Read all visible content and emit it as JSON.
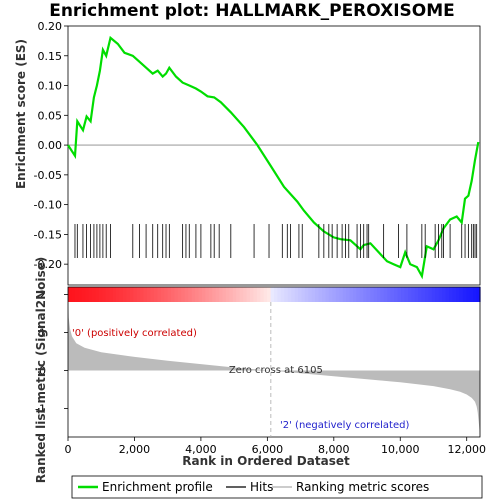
{
  "chart_data": {
    "type": "line",
    "title": "Enrichment plot: HALLMARK_PEROXISOME",
    "top_panel": {
      "ylabel": "Enrichment score (ES)",
      "ylim": [
        -0.235,
        0.2
      ],
      "yticks": [
        0.2,
        0.15,
        0.1,
        0.05,
        0.0,
        -0.05,
        -0.1,
        -0.15,
        -0.2
      ],
      "ytick_labels": [
        "0.20",
        "0.15",
        "0.10",
        "0.05",
        "0.00",
        "-0.05",
        "-0.10",
        "-0.15",
        "-0.20"
      ],
      "series": [
        {
          "name": "Enrichment profile",
          "color": "#00dd00",
          "x": [
            0,
            210,
            280,
            450,
            560,
            680,
            780,
            870,
            960,
            1050,
            1150,
            1280,
            1500,
            1700,
            1950,
            2150,
            2350,
            2550,
            2700,
            2850,
            2950,
            3050,
            3250,
            3450,
            3650,
            3850,
            4000,
            4200,
            4400,
            4600,
            4900,
            5300,
            5700,
            6100,
            6500,
            6900,
            7100,
            7400,
            7700,
            8000,
            8200,
            8500,
            8700,
            8800,
            8900,
            9100,
            9350,
            9600,
            9800,
            10000,
            10150,
            10300,
            10500,
            10650,
            10800,
            11000,
            11150,
            11300,
            11500,
            11700,
            11850,
            11950,
            12050,
            12150,
            12250,
            12350
          ],
          "y": [
            0.0,
            -0.018,
            0.04,
            0.025,
            0.048,
            0.04,
            0.08,
            0.1,
            0.125,
            0.16,
            0.15,
            0.18,
            0.17,
            0.155,
            0.15,
            0.14,
            0.13,
            0.12,
            0.125,
            0.115,
            0.12,
            0.13,
            0.115,
            0.105,
            0.1,
            0.095,
            0.09,
            0.082,
            0.08,
            0.072,
            0.055,
            0.03,
            0.0,
            -0.035,
            -0.07,
            -0.095,
            -0.11,
            -0.13,
            -0.145,
            -0.155,
            -0.158,
            -0.16,
            -0.17,
            -0.175,
            -0.168,
            -0.165,
            -0.18,
            -0.195,
            -0.2,
            -0.205,
            -0.18,
            -0.2,
            -0.205,
            -0.22,
            -0.17,
            -0.175,
            -0.16,
            -0.14,
            -0.125,
            -0.12,
            -0.13,
            -0.09,
            -0.085,
            -0.06,
            -0.025,
            0.005
          ]
        }
      ]
    },
    "hits": [
      210,
      280,
      450,
      560,
      680,
      780,
      870,
      960,
      1050,
      1150,
      1280,
      1950,
      2150,
      2350,
      2550,
      2700,
      2850,
      2950,
      3050,
      3450,
      3550,
      3650,
      3850,
      4000,
      4300,
      4400,
      4550,
      4900,
      5600,
      6050,
      6450,
      6600,
      6700,
      6950,
      7050,
      7550,
      7700,
      7850,
      7950,
      8100,
      8250,
      8350,
      8450,
      8700,
      8800,
      8900,
      9000,
      9050,
      9500,
      9950,
      10200,
      10650,
      10750,
      11050,
      11150,
      11250,
      11300,
      11500,
      11850,
      11950,
      12050,
      12150,
      12200,
      12250,
      12300
    ],
    "bottom_panel": {
      "ylabel": "Ranked list metric (Signal2Noise)",
      "xlabel": "Rank in Ordered Dataset",
      "xlim": [
        0,
        12400
      ],
      "ylim": [
        -1.75,
        2.2
      ],
      "yticks": [
        2,
        1,
        0,
        -1
      ],
      "xticks": [
        0,
        2000,
        4000,
        6000,
        8000,
        10000,
        12000
      ],
      "xtick_labels": [
        "0",
        "2,000",
        "4,000",
        "6,000",
        "8,000",
        "10,000",
        "12,000"
      ],
      "metric_profile": {
        "rank": [
          0,
          20,
          60,
          120,
          250,
          500,
          1000,
          2000,
          3000,
          4000,
          5000,
          6105,
          7000,
          8000,
          9000,
          10000,
          11000,
          11500,
          11800,
          12000,
          12150,
          12250,
          12300,
          12330,
          12360,
          12400
        ],
        "value": [
          2.1,
          1.4,
          1.1,
          0.9,
          0.72,
          0.6,
          0.48,
          0.36,
          0.26,
          0.17,
          0.08,
          0.0,
          -0.07,
          -0.15,
          -0.23,
          -0.31,
          -0.41,
          -0.49,
          -0.56,
          -0.63,
          -0.72,
          -0.82,
          -0.95,
          -1.1,
          -1.35,
          -1.7
        ]
      },
      "zero_cross_rank": 6105,
      "zero_cross_label": "Zero cross at 6105",
      "pos_label": "'0' (positively correlated)",
      "neg_label": "'2' (negatively correlated)",
      "pos_color": "#cc0000",
      "neg_color": "#2222cc"
    },
    "legend": [
      {
        "label": "Enrichment profile",
        "color": "#00dd00"
      },
      {
        "label": "Hits",
        "color": "#000000"
      },
      {
        "label": "Ranking metric scores",
        "color": "#bbbbbb"
      }
    ]
  }
}
